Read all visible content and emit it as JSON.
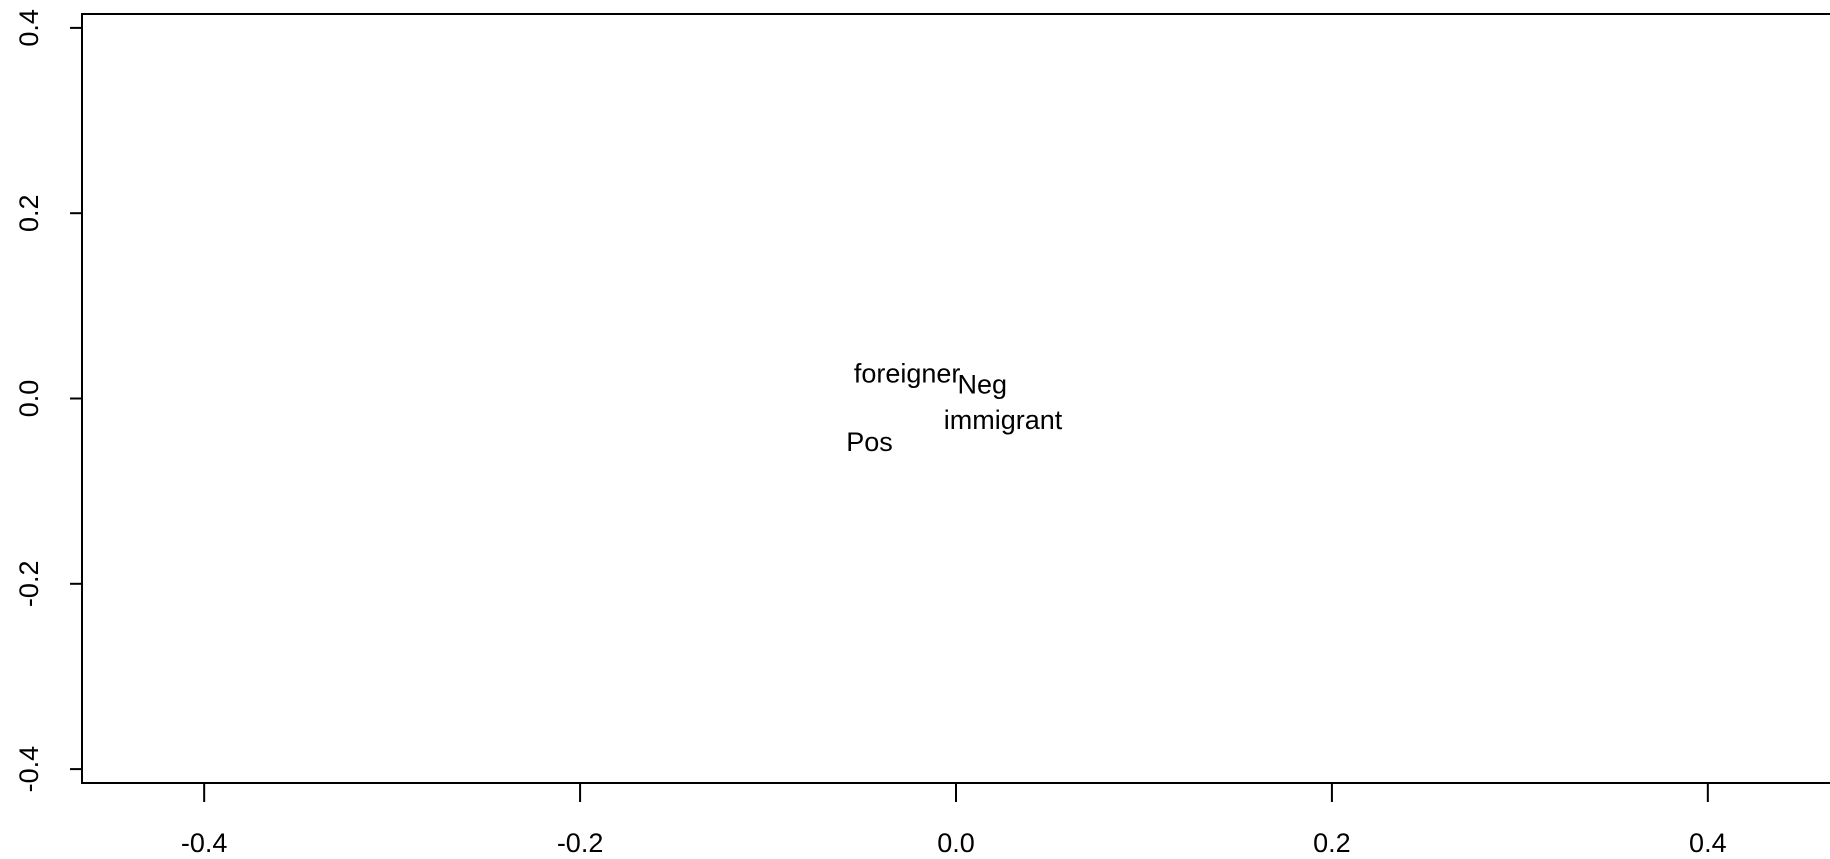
{
  "chart_data": {
    "type": "scatter",
    "title": "",
    "xlabel": "",
    "ylabel": "",
    "xlim": [
      -0.465,
      0.465
    ],
    "ylim": [
      -0.415,
      0.415
    ],
    "x_ticks": [
      -0.4,
      -0.2,
      0.0,
      0.2,
      0.4
    ],
    "x_tick_labels": [
      "-0.4",
      "-0.2",
      "0.0",
      "0.2",
      "0.4"
    ],
    "y_ticks": [
      -0.4,
      -0.2,
      0.0,
      0.2,
      0.4
    ],
    "y_tick_labels": [
      "-0.4",
      "-0.2",
      "0.0",
      "0.2",
      "0.4"
    ],
    "grid": false,
    "box": "open-right",
    "colors": {
      "axis": "#000000",
      "text": "#000000",
      "background": "#ffffff"
    },
    "points": [
      {
        "label": "foreigner",
        "x": -0.026,
        "y": 0.027
      },
      {
        "label": "Neg",
        "x": 0.014,
        "y": 0.015
      },
      {
        "label": "immigrant",
        "x": 0.025,
        "y": -0.023
      },
      {
        "label": "Pos",
        "x": -0.046,
        "y": -0.047
      }
    ]
  }
}
